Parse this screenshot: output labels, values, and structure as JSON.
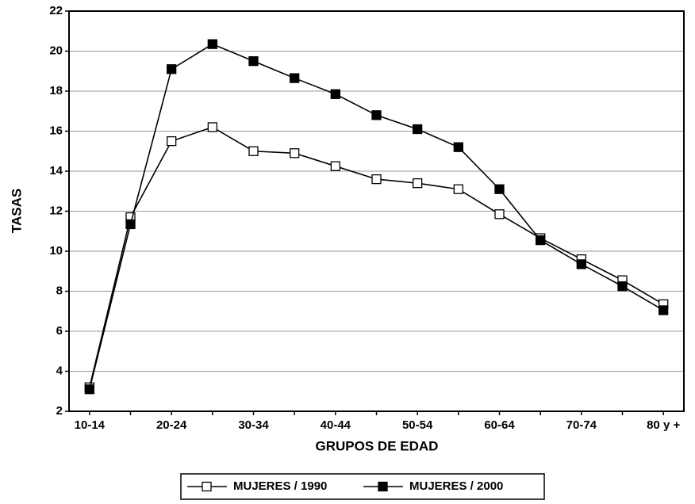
{
  "chart_data": {
    "type": "line",
    "xlabel": "GRUPOS DE EDAD",
    "ylabel": "TASAS",
    "categories": [
      "10-14",
      null,
      "20-24",
      null,
      "30-34",
      null,
      "40-44",
      null,
      "50-54",
      null,
      "60-64",
      null,
      "70-74",
      null,
      "80 y +"
    ],
    "series": [
      {
        "name": "MUJERES / 1990",
        "color": "#000000",
        "marker_fill": "#ffffff",
        "values": [
          3.2,
          11.7,
          15.5,
          16.2,
          15.0,
          14.9,
          14.25,
          13.6,
          13.4,
          13.1,
          11.85,
          10.65,
          9.6,
          8.55,
          7.35
        ]
      },
      {
        "name": "MUJERES / 2000",
        "color": "#000000",
        "marker_fill": "#000000",
        "values": [
          3.1,
          11.35,
          19.1,
          20.35,
          19.5,
          18.65,
          17.85,
          16.8,
          16.1,
          15.2,
          13.1,
          10.55,
          9.35,
          8.25,
          7.05
        ]
      }
    ],
    "ylim": [
      2,
      22
    ],
    "yticks": [
      2,
      4,
      6,
      8,
      10,
      12,
      14,
      16,
      18,
      20,
      22
    ],
    "grid": true,
    "legend": "bottom"
  }
}
